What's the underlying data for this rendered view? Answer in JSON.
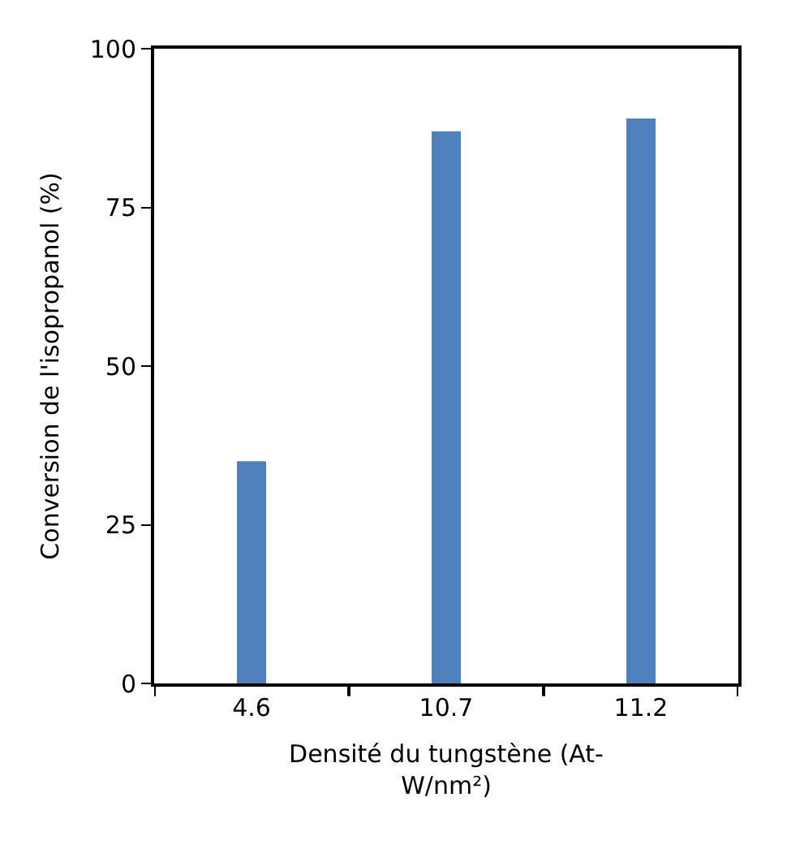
{
  "chart_data": {
    "type": "bar",
    "xlabel": "Densité du tungstène (At-W/nm²)",
    "ylabel": "Conversion de l'isopropanol (%)",
    "categories": [
      "4.6",
      "10.7",
      "11.2"
    ],
    "values": [
      35,
      87,
      89
    ],
    "color": "#4f81bd",
    "ylim": [
      0,
      100
    ],
    "yticks": [
      0,
      25,
      50,
      75,
      100
    ]
  }
}
